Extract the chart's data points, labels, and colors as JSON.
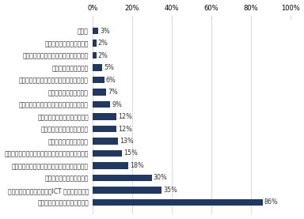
{
  "title": "",
  "categories": [
    "その他",
    "特に何もせず、状況を見る",
    "拠点・部署等を減らして、人員を集約化",
    "社内意思決定の簡素化",
    "取引先との非効率・不合理な慣習を見直す",
    "他社と人材を融通し合う",
    "会議時間短縮など、時間の使い方の見直し",
    "部署間・社員間の業務を平準化",
    "経営者や管理職が作業を補う",
    "残業、休日出勤等で対応",
    "不必要な業務をやめる（アウトソーシングを含む）",
    "社員のモチベーション向上のため、処遇見直し",
    "既存社員の教育、能力向上",
    "既存の業務を効率化する（ICT 化、標準化等）",
    "新規人材の採用（欠員の補充）"
  ],
  "values": [
    3,
    2,
    2,
    5,
    6,
    7,
    9,
    12,
    12,
    13,
    15,
    18,
    30,
    35,
    86
  ],
  "bar_color": "#1f3864",
  "label_color": "#333333",
  "value_color": "#333333",
  "background_color": "#ffffff",
  "xlim": [
    0,
    100
  ],
  "xtick_values": [
    0,
    20,
    40,
    60,
    80,
    100
  ],
  "xtick_labels": [
    "0%",
    "20%",
    "40%",
    "60%",
    "80%",
    "100%"
  ],
  "bar_height": 0.55,
  "label_fontsize": 5.5,
  "value_fontsize": 5.8,
  "tick_fontsize": 6.0
}
